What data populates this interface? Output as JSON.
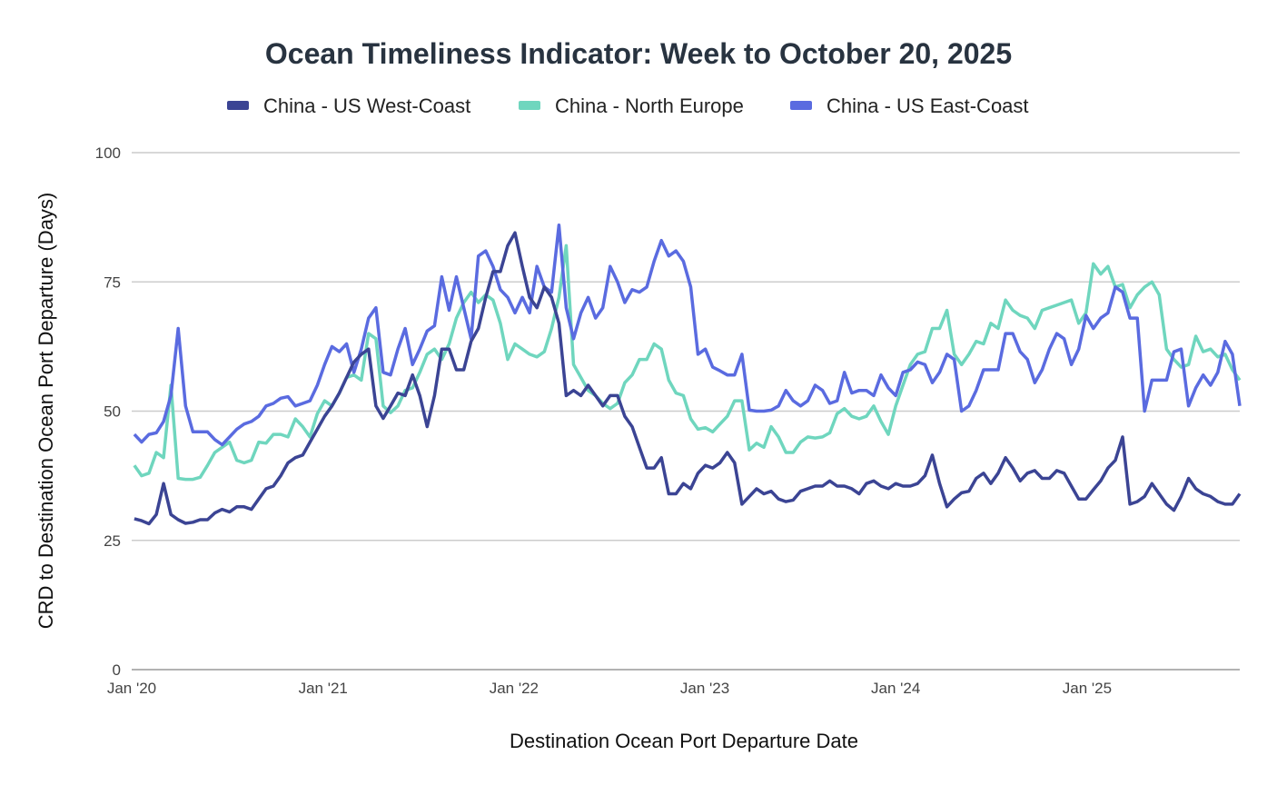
{
  "chart_data": {
    "type": "line",
    "title": "Ocean Timeliness Indicator: Week to October 20, 2025",
    "xlabel": "Destination Ocean Port Departure Date",
    "ylabel": "CRD to Destination Ocean Port Departure (Days)",
    "ylim": [
      0,
      100
    ],
    "yticks": [
      "0",
      "25",
      "50",
      "75",
      "100"
    ],
    "xticks": [
      {
        "label": "Jan '20",
        "date": "2020-01-01"
      },
      {
        "label": "Jan '21",
        "date": "2021-01-01"
      },
      {
        "label": "Jan '22",
        "date": "2022-01-01"
      },
      {
        "label": "Jan '23",
        "date": "2023-01-01"
      },
      {
        "label": "Jan '24",
        "date": "2024-01-01"
      },
      {
        "label": "Jan '25",
        "date": "2025-01-01"
      }
    ],
    "xlim": [
      "2020-01-01",
      "2025-10-20"
    ],
    "grid": true,
    "legend_position": "top",
    "x": [
      "2020-01-06",
      "2020-01-20",
      "2020-02-03",
      "2020-02-17",
      "2020-03-02",
      "2020-03-16",
      "2020-03-30",
      "2020-04-13",
      "2020-04-27",
      "2020-05-11",
      "2020-05-25",
      "2020-06-08",
      "2020-06-22",
      "2020-07-06",
      "2020-07-20",
      "2020-08-03",
      "2020-08-17",
      "2020-08-31",
      "2020-09-14",
      "2020-09-28",
      "2020-10-12",
      "2020-10-26",
      "2020-11-09",
      "2020-11-23",
      "2020-12-07",
      "2020-12-21",
      "2021-01-04",
      "2021-01-18",
      "2021-02-01",
      "2021-02-15",
      "2021-03-01",
      "2021-03-15",
      "2021-03-29",
      "2021-04-12",
      "2021-04-26",
      "2021-05-10",
      "2021-05-24",
      "2021-06-07",
      "2021-06-21",
      "2021-07-05",
      "2021-07-19",
      "2021-08-02",
      "2021-08-16",
      "2021-08-30",
      "2021-09-13",
      "2021-09-27",
      "2021-10-11",
      "2021-10-25",
      "2021-11-08",
      "2021-11-22",
      "2021-12-06",
      "2021-12-20",
      "2022-01-03",
      "2022-01-17",
      "2022-01-31",
      "2022-02-14",
      "2022-02-28",
      "2022-03-14",
      "2022-03-28",
      "2022-04-11",
      "2022-04-25",
      "2022-05-09",
      "2022-05-23",
      "2022-06-06",
      "2022-06-20",
      "2022-07-04",
      "2022-07-18",
      "2022-08-01",
      "2022-08-15",
      "2022-08-29",
      "2022-09-12",
      "2022-09-26",
      "2022-10-10",
      "2022-10-24",
      "2022-11-07",
      "2022-11-21",
      "2022-12-05",
      "2022-12-19",
      "2023-01-02",
      "2023-01-16",
      "2023-01-30",
      "2023-02-13",
      "2023-02-27",
      "2023-03-13",
      "2023-03-27",
      "2023-04-10",
      "2023-04-24",
      "2023-05-08",
      "2023-05-22",
      "2023-06-05",
      "2023-06-19",
      "2023-07-03",
      "2023-07-17",
      "2023-07-31",
      "2023-08-14",
      "2023-08-28",
      "2023-09-11",
      "2023-09-25",
      "2023-10-09",
      "2023-10-23",
      "2023-11-06",
      "2023-11-20",
      "2023-12-04",
      "2023-12-18",
      "2024-01-01",
      "2024-01-15",
      "2024-01-29",
      "2024-02-12",
      "2024-02-26",
      "2024-03-11",
      "2024-03-25",
      "2024-04-08",
      "2024-04-22",
      "2024-05-06",
      "2024-05-20",
      "2024-06-03",
      "2024-06-17",
      "2024-07-01",
      "2024-07-15",
      "2024-07-29",
      "2024-08-12",
      "2024-08-26",
      "2024-09-09",
      "2024-09-23",
      "2024-10-07",
      "2024-10-21",
      "2024-11-04",
      "2024-11-18",
      "2024-12-02",
      "2024-12-16",
      "2024-12-30",
      "2025-01-13",
      "2025-01-27",
      "2025-02-10",
      "2025-02-24",
      "2025-03-10",
      "2025-03-24",
      "2025-04-07",
      "2025-04-21",
      "2025-05-05",
      "2025-05-19",
      "2025-06-02",
      "2025-06-16",
      "2025-06-30",
      "2025-07-14",
      "2025-07-28",
      "2025-08-11",
      "2025-08-25",
      "2025-09-08",
      "2025-09-22",
      "2025-10-06",
      "2025-10-20"
    ],
    "series": [
      {
        "name": "China - US West-Coast",
        "color": "#3b4494",
        "values": [
          29.2,
          28.8,
          28.2,
          30,
          36,
          30,
          29,
          28.3,
          28.5,
          29,
          29,
          30.3,
          31,
          30.5,
          31.5,
          31.5,
          31,
          33,
          35,
          35.5,
          37.5,
          40,
          41,
          41.5,
          44,
          46.5,
          49,
          51,
          53.5,
          56.5,
          59.5,
          61,
          62,
          51,
          48.6,
          51,
          53.5,
          53,
          57,
          53,
          47,
          53,
          62,
          62,
          58,
          58,
          63.5,
          66,
          72,
          77,
          77,
          82,
          84.5,
          78,
          72,
          70,
          74,
          72,
          67,
          53,
          54,
          53,
          55,
          53,
          51,
          53,
          53,
          49,
          47,
          43,
          39,
          39,
          41,
          34,
          34,
          36,
          35,
          38,
          39.5,
          39,
          40,
          42,
          40,
          32,
          33.5,
          35,
          34,
          34.5,
          33,
          32.5,
          32.8,
          34.5,
          35,
          35.5,
          35.5,
          36.5,
          35.5,
          35.5,
          35,
          34,
          36,
          36.5,
          35.5,
          35,
          36,
          35.5,
          35.5,
          36,
          37.5,
          41.5,
          36,
          31.5,
          33,
          34.2,
          34.5,
          37,
          38,
          36,
          38,
          41,
          39,
          36.5,
          38,
          38.5,
          37,
          37,
          38.5,
          38,
          35.5,
          33,
          33,
          34.8,
          36.5,
          39,
          40.5,
          45,
          32,
          32.5,
          33.5,
          36,
          34,
          32,
          30.8,
          33.5,
          37,
          35,
          34,
          33.5,
          32.5,
          32,
          32,
          34
        ]
      },
      {
        "name": "China - North Europe",
        "color": "#6fd6be",
        "values": [
          39.5,
          37.5,
          38,
          42,
          41,
          55,
          37,
          36.8,
          36.8,
          37.2,
          39.5,
          42,
          43,
          44,
          40.5,
          40,
          40.5,
          44,
          43.8,
          45.5,
          45.5,
          45,
          48.5,
          47,
          45,
          49.5,
          52,
          51,
          53.5,
          56.5,
          57,
          56,
          65,
          64,
          51,
          49.7,
          51,
          54,
          54.5,
          57.5,
          61,
          62,
          60,
          63,
          68,
          71,
          73,
          71,
          72.5,
          71.5,
          67,
          60,
          63,
          62,
          61,
          60.5,
          61.5,
          66,
          72,
          82,
          59,
          56.5,
          54,
          53,
          51.5,
          50.5,
          51.5,
          55.5,
          57,
          60,
          60,
          63,
          62,
          56,
          53.5,
          53,
          48.5,
          46.5,
          46.8,
          46,
          47.5,
          49,
          52,
          52,
          42.5,
          43.8,
          43,
          47,
          45,
          42,
          42,
          44,
          45,
          44.8,
          45,
          45.8,
          49.5,
          50.5,
          49,
          48.5,
          49,
          51,
          48,
          45.5,
          51,
          55,
          59,
          61,
          61.5,
          66,
          66,
          69.5,
          61,
          59,
          61,
          63.5,
          63,
          67,
          66,
          71.5,
          69.5,
          68.5,
          68,
          66,
          69.5,
          70,
          70.5,
          71,
          71.5,
          67,
          69,
          78.5,
          76.5,
          78,
          74,
          74.5,
          70,
          72.5,
          74,
          75,
          72.5,
          62,
          60,
          58.5,
          59,
          64.5,
          61.5,
          62,
          60.5,
          61,
          58,
          56
        ]
      },
      {
        "name": "China - US East-Coast",
        "color": "#5a6be0",
        "values": [
          45.5,
          44,
          45.5,
          45.8,
          48,
          53,
          66,
          51,
          46,
          46,
          46,
          44.5,
          43.5,
          45,
          46.5,
          47.5,
          48,
          49,
          51,
          51.5,
          52.5,
          52.8,
          51,
          51.5,
          52,
          55,
          59,
          62.5,
          61.5,
          63,
          57.5,
          62,
          68,
          70,
          57.5,
          57,
          62,
          66,
          59,
          62,
          65.5,
          66.5,
          76,
          69.5,
          76,
          70,
          64,
          80,
          81,
          78,
          73.5,
          72,
          69,
          72,
          69,
          78,
          74,
          73,
          86,
          70,
          64,
          69,
          72,
          68,
          70,
          78,
          75,
          71,
          73.5,
          73,
          74,
          79,
          83,
          80,
          81,
          79,
          74,
          61,
          62,
          58.5,
          57.8,
          57,
          57,
          61,
          50.2,
          50,
          50,
          50.2,
          51,
          54,
          52,
          51,
          52,
          55,
          54,
          51.5,
          52,
          57.5,
          53.5,
          54,
          54,
          53,
          57,
          54.5,
          53,
          57.5,
          58,
          59.5,
          59,
          55.5,
          57.5,
          61,
          60,
          50,
          51,
          54,
          58,
          58,
          58,
          65,
          65,
          61.5,
          60,
          55.5,
          58,
          62,
          65,
          64,
          59,
          62,
          68.5,
          66,
          68,
          69,
          74,
          73,
          68,
          68,
          50,
          56,
          56,
          56,
          61.5,
          62,
          51,
          54.5,
          57,
          55,
          57.5,
          63.5,
          61,
          51
        ]
      }
    ]
  }
}
